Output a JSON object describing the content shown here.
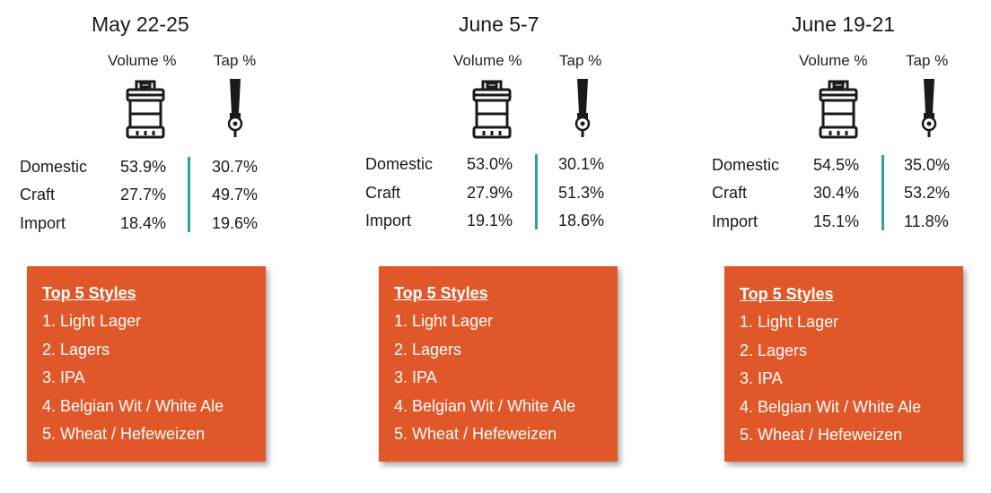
{
  "panels": [
    {
      "title": "May 22-25",
      "volume_header": "Volume %",
      "tap_header": "Tap %",
      "rows": [
        {
          "label": "Domestic",
          "volume": "53.9%",
          "tap": "30.7%"
        },
        {
          "label": "Craft",
          "volume": "27.7%",
          "tap": "49.7%"
        },
        {
          "label": "Import",
          "volume": "18.4%",
          "tap": "19.6%"
        }
      ],
      "styles_title": "Top 5 Styles",
      "styles": [
        "1. Light Lager",
        "2. Lagers",
        "3. IPA",
        "4. Belgian Wit / White Ale",
        "5. Wheat / Hefeweizen"
      ]
    },
    {
      "title": "June 5-7",
      "volume_header": "Volume %",
      "tap_header": "Tap %",
      "rows": [
        {
          "label": "Domestic",
          "volume": "53.0%",
          "tap": "30.1%"
        },
        {
          "label": "Craft",
          "volume": "27.9%",
          "tap": "51.3%"
        },
        {
          "label": "Import",
          "volume": "19.1%",
          "tap": "18.6%"
        }
      ],
      "styles_title": "Top 5 Styles",
      "styles": [
        "1. Light Lager",
        "2. Lagers",
        "3. IPA",
        "4. Belgian Wit / White Ale",
        "5. Wheat / Hefeweizen"
      ]
    },
    {
      "title": "June 19-21",
      "volume_header": "Volume %",
      "tap_header": "Tap %",
      "rows": [
        {
          "label": "Domestic",
          "volume": "54.5%",
          "tap": "35.0%"
        },
        {
          "label": "Craft",
          "volume": "30.4%",
          "tap": "53.2%"
        },
        {
          "label": "Import",
          "volume": "15.1%",
          "tap": "11.8%"
        }
      ],
      "styles_title": "Top 5 Styles",
      "styles": [
        "1. Light Lager",
        "2. Lagers",
        "3. IPA",
        "4. Belgian Wit / White Ale",
        "5. Wheat / Hefeweizen"
      ]
    }
  ],
  "icons": {
    "volume": "keg-icon",
    "tap": "beer-tap-icon"
  },
  "colors": {
    "accent_box": "#e0582a",
    "divider": "#2aa3a6",
    "box_text": "#ffffff"
  }
}
